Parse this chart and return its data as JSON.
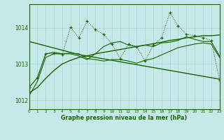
{
  "bg_color": "#c5e8e8",
  "grid_color": "#a8d4d4",
  "line_color": "#1a6600",
  "title": "Graphe pression niveau de la mer (hPa)",
  "xlim": [
    0,
    23
  ],
  "ylim": [
    1011.75,
    1014.65
  ],
  "yticks": [
    1012,
    1013,
    1014
  ],
  "xticks": [
    0,
    1,
    2,
    3,
    4,
    5,
    6,
    7,
    8,
    9,
    10,
    11,
    12,
    13,
    14,
    15,
    16,
    17,
    18,
    19,
    20,
    21,
    22,
    23
  ],
  "dotted": [
    1012.35,
    1012.62,
    1013.28,
    1013.3,
    1013.25,
    1014.02,
    1013.72,
    1014.18,
    1013.95,
    1013.82,
    1013.55,
    1013.15,
    1013.55,
    1013.48,
    1013.08,
    1013.52,
    1013.72,
    1014.42,
    1014.05,
    1013.82,
    1013.78,
    1013.72,
    1013.65,
    1012.55
  ],
  "trend_up": [
    1012.2,
    1012.35,
    1012.6,
    1012.82,
    1013.0,
    1013.1,
    1013.18,
    1013.22,
    1013.28,
    1013.32,
    1013.36,
    1013.4,
    1013.44,
    1013.48,
    1013.52,
    1013.56,
    1013.6,
    1013.65,
    1013.68,
    1013.72,
    1013.75,
    1013.78,
    1013.78,
    1013.8
  ],
  "trend_down": [
    1013.62,
    1013.56,
    1013.5,
    1013.44,
    1013.38,
    1013.32,
    1013.26,
    1013.22,
    1013.18,
    1013.14,
    1013.1,
    1013.06,
    1013.02,
    1012.98,
    1012.94,
    1012.9,
    1012.86,
    1012.82,
    1012.78,
    1012.74,
    1012.7,
    1012.66,
    1012.62,
    1012.58
  ],
  "smooth1": [
    1012.35,
    1012.62,
    1013.28,
    1013.32,
    1013.28,
    1013.28,
    1013.22,
    1013.12,
    1013.28,
    1013.48,
    1013.58,
    1013.62,
    1013.52,
    1013.48,
    1013.52,
    1013.48,
    1013.58,
    1013.6,
    1013.65,
    1013.75,
    1013.68,
    1013.62,
    1013.62,
    1013.22
  ],
  "smooth2": [
    1012.12,
    1012.52,
    1013.18,
    1013.28,
    1013.28,
    1013.3,
    1013.28,
    1013.15,
    1013.12,
    1013.08,
    1013.12,
    1013.12,
    1013.08,
    1013.02,
    1013.1,
    1013.15,
    1013.25,
    1013.35,
    1013.45,
    1013.5,
    1013.55,
    1013.58,
    1013.55,
    1013.18
  ]
}
